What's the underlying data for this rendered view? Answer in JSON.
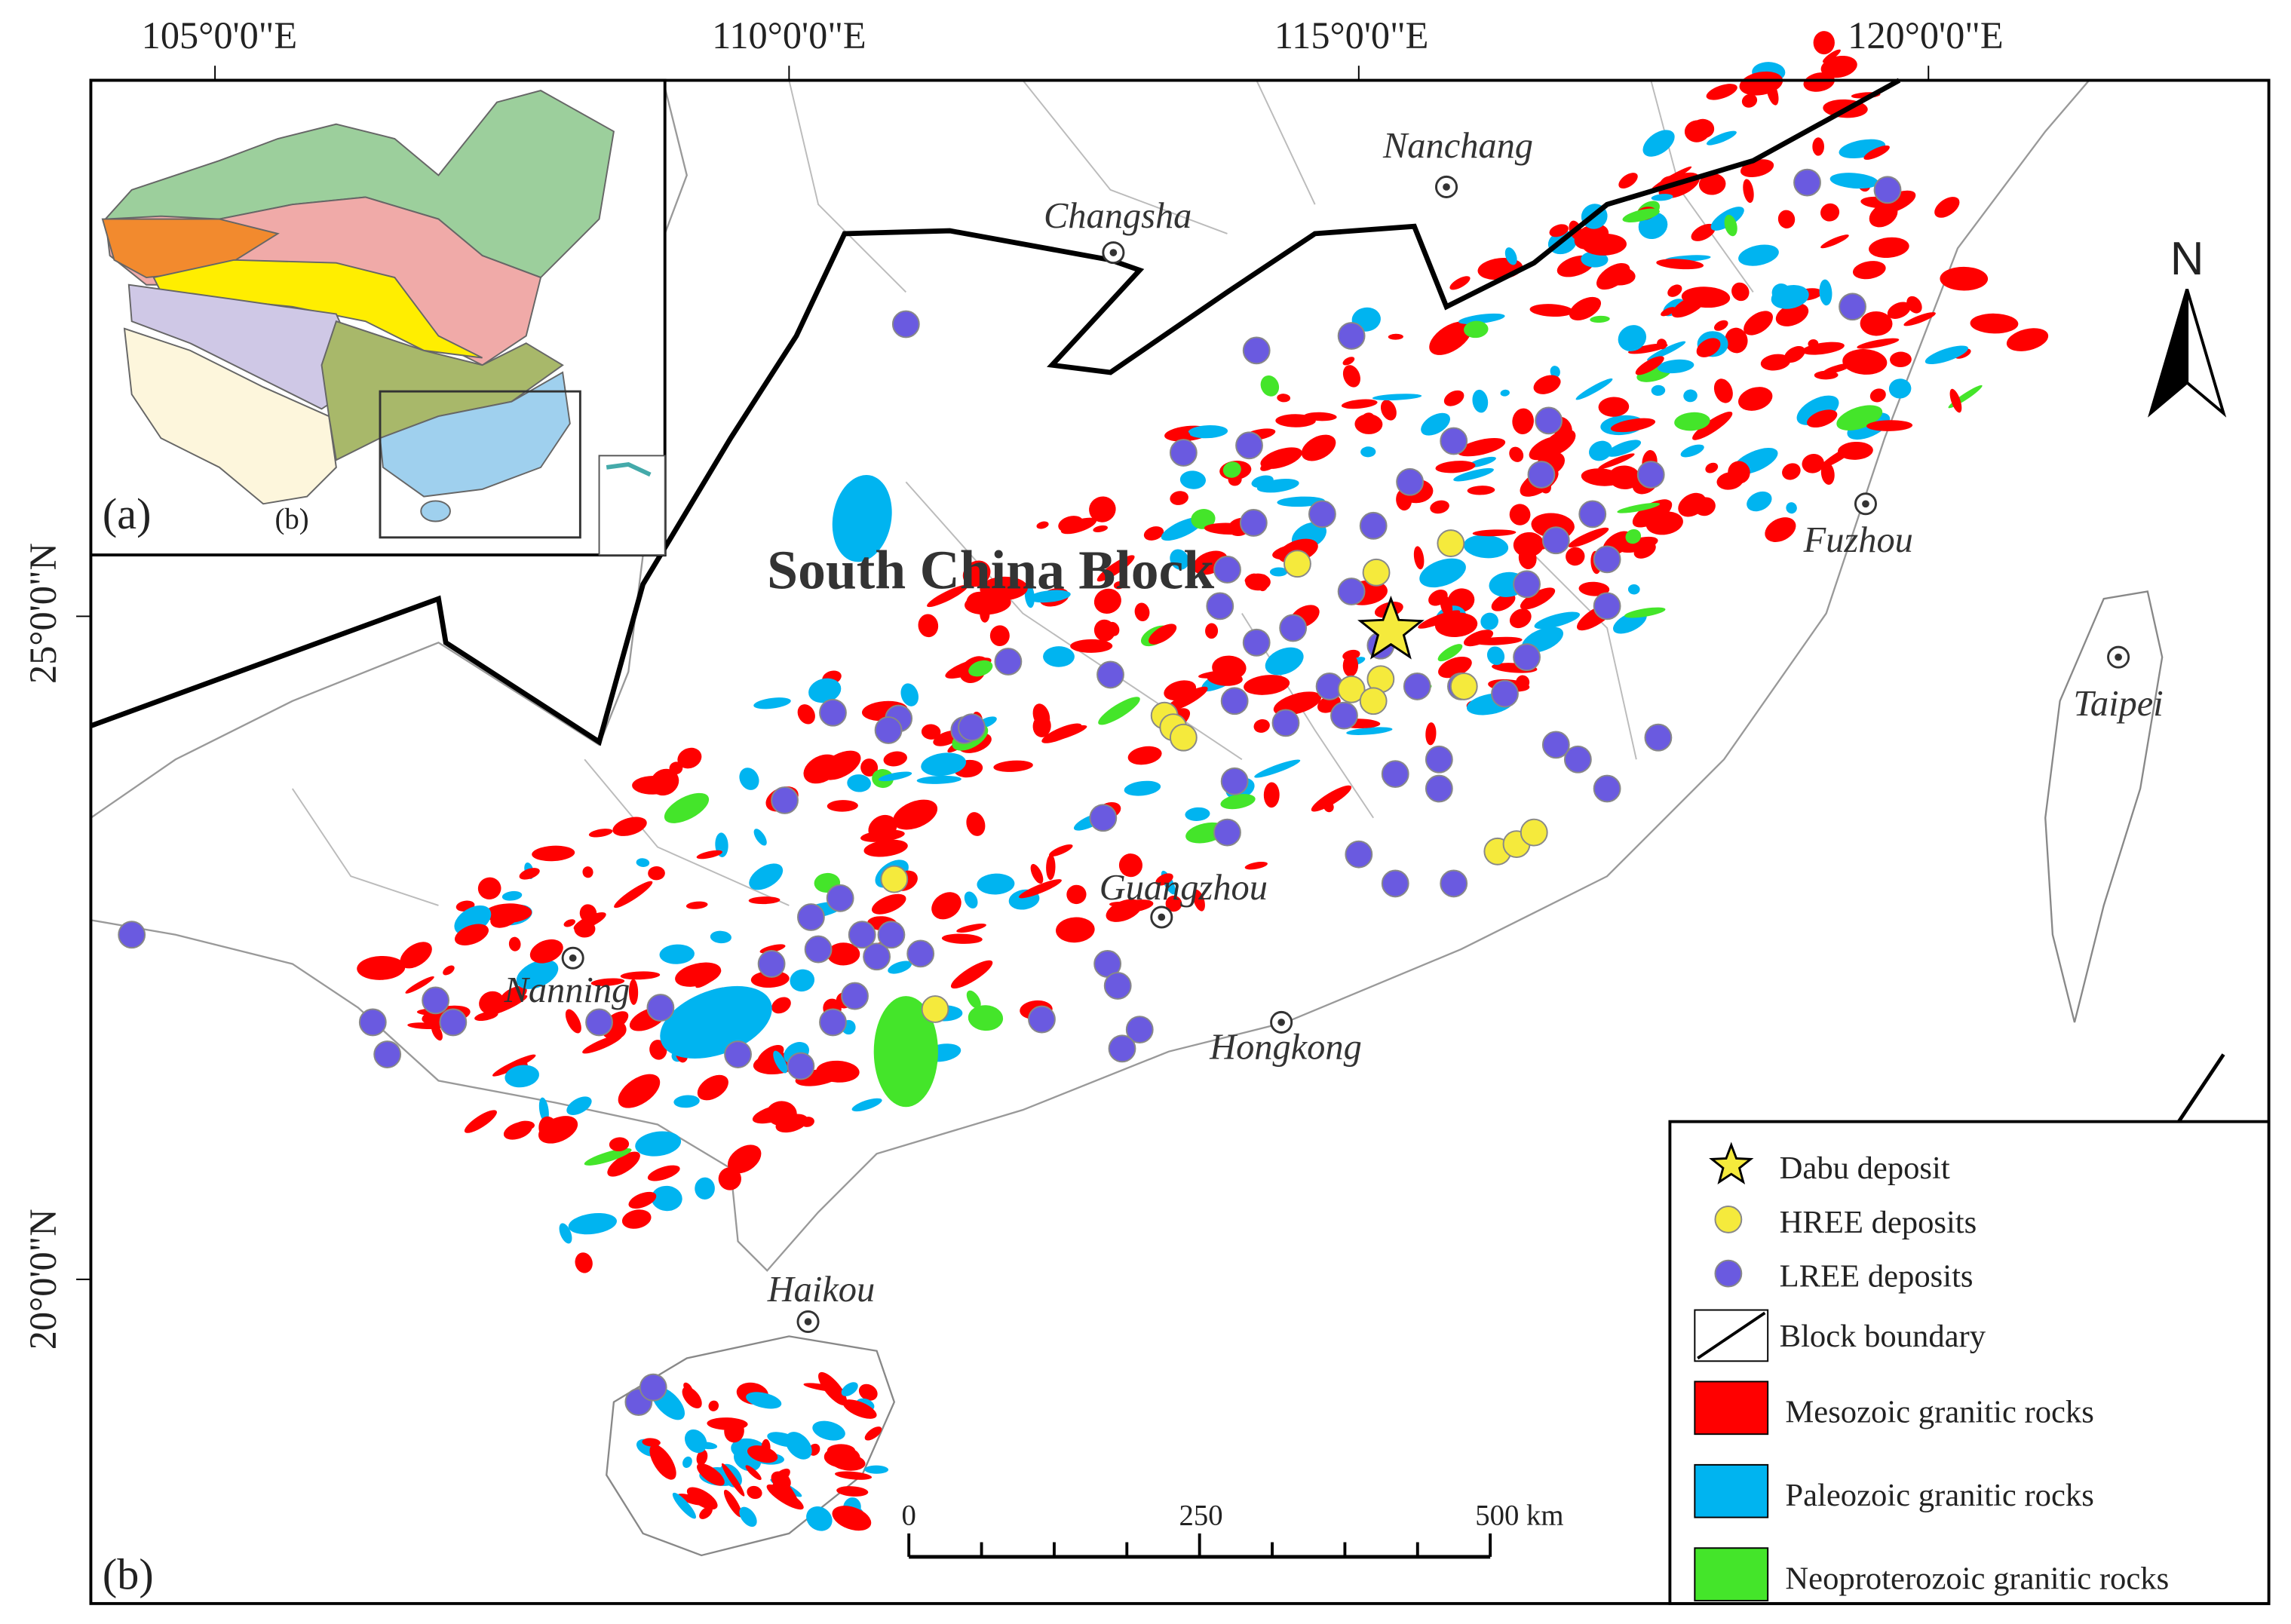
{
  "axes": {
    "longitude_labels": [
      "105°0'0\"E",
      "110°0'0\"E",
      "115°0'0\"E",
      "120°0'0\"E"
    ],
    "latitude_labels": [
      "25°0'0\"N",
      "20°0'0\"N"
    ]
  },
  "panels": {
    "a": "(a)",
    "b_inset": "(b)",
    "b": "(b)"
  },
  "map": {
    "title": "South China Block",
    "cities": [
      "Changsha",
      "Nanchang",
      "Fuzhou",
      "Taipei",
      "Guangzhou",
      "Nanning",
      "Hongkong",
      "Haikou"
    ]
  },
  "legend": {
    "items": [
      "Dabu deposit",
      "HREE deposits",
      "LREE deposits",
      "Block boundary",
      "Mesozoic granitic rocks",
      "Paleozoic granitic rocks",
      "Neoproterozoic granitic rocks"
    ]
  },
  "scale_bar": {
    "labels": [
      "0",
      "250",
      "500 km"
    ]
  },
  "north_arrow": "N"
}
